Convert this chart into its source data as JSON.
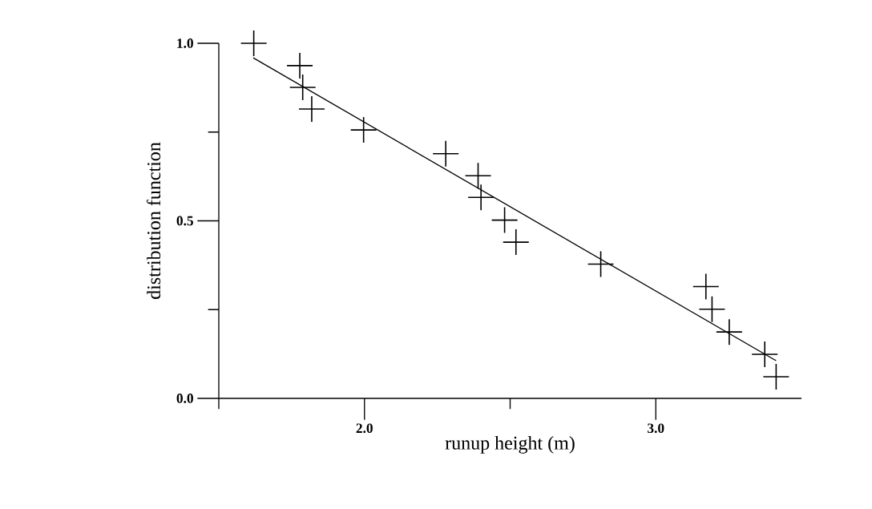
{
  "chart_data": {
    "type": "scatter",
    "xlabel": "runup height (m)",
    "ylabel": "distribution function",
    "xlim": [
      1.5,
      3.5
    ],
    "ylim": [
      0,
      1
    ],
    "xticks": [
      {
        "value": 1.5,
        "label": null
      },
      {
        "value": 2,
        "label": "2.0"
      },
      {
        "value": 2.5,
        "label": null
      },
      {
        "value": 3,
        "label": "3.0"
      }
    ],
    "yticks": [
      {
        "value": 0,
        "label": "0.0"
      },
      {
        "value": 0.25,
        "label": null
      },
      {
        "value": 0.5,
        "label": "0.5"
      },
      {
        "value": 0.75,
        "label": null
      },
      {
        "value": 1,
        "label": "1.0"
      }
    ],
    "series": [
      {
        "color": "#000000",
        "marker": "cross",
        "x": [
          1.62,
          1.778,
          1.788,
          1.819,
          1.997,
          2.279,
          2.39,
          2.4,
          2.481,
          2.52,
          2.811,
          3.172,
          3.193,
          3.252,
          3.374,
          3.413
        ],
        "values": [
          1.0,
          0.937,
          0.876,
          0.815,
          0.756,
          0.689,
          0.627,
          0.566,
          0.502,
          0.44,
          0.378,
          0.315,
          0.251,
          0.187,
          0.124,
          0.061
        ]
      },
      {
        "type": "line",
        "color": "#000000",
        "x": [
          1.618,
          3.413
        ],
        "values": [
          0.959,
          0.106
        ]
      }
    ]
  }
}
